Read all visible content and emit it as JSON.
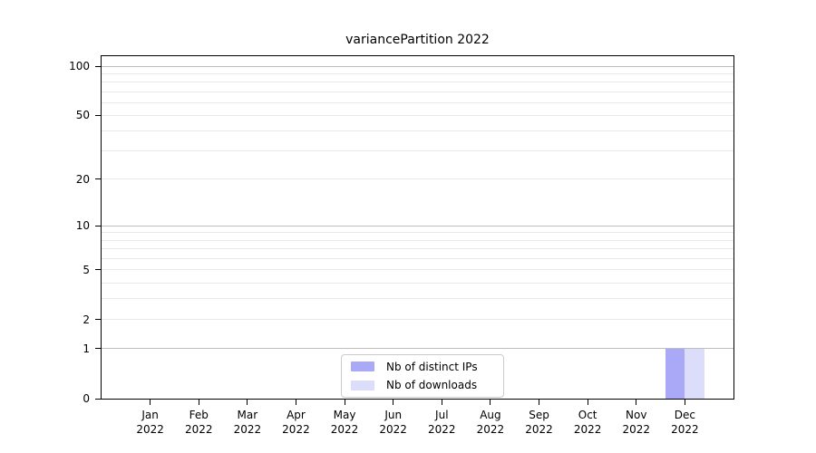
{
  "chart": {
    "title": "variancePartition 2022"
  },
  "chart_data": {
    "type": "bar",
    "title": "variancePartition 2022",
    "categories": [
      "Jan",
      "Feb",
      "Mar",
      "Apr",
      "May",
      "Jun",
      "Jul",
      "Aug",
      "Sep",
      "Oct",
      "Nov",
      "Dec"
    ],
    "x_year_suffix": "2022",
    "series": [
      {
        "name": "Nb of distinct IPs",
        "color": "#a9a9f7",
        "values": [
          0,
          0,
          0,
          0,
          0,
          0,
          0,
          0,
          0,
          0,
          0,
          1
        ]
      },
      {
        "name": "Nb of downloads",
        "color": "#dcdcfb",
        "values": [
          0,
          0,
          0,
          0,
          0,
          0,
          0,
          0,
          0,
          0,
          0,
          1
        ]
      }
    ],
    "yscale": "log1p",
    "ylim": [
      0,
      115
    ],
    "xlabel": "",
    "ylabel": "",
    "y_ticks": [
      0,
      1,
      2,
      5,
      10,
      20,
      50,
      100
    ],
    "y_gridlines_major": [
      1,
      10,
      100
    ],
    "y_gridlines_minor": [
      2,
      3,
      4,
      5,
      6,
      7,
      8,
      9,
      20,
      30,
      40,
      50,
      60,
      70,
      80,
      90
    ],
    "grid": "on",
    "legend_position": "lower center",
    "background_color": "#ffffff"
  }
}
